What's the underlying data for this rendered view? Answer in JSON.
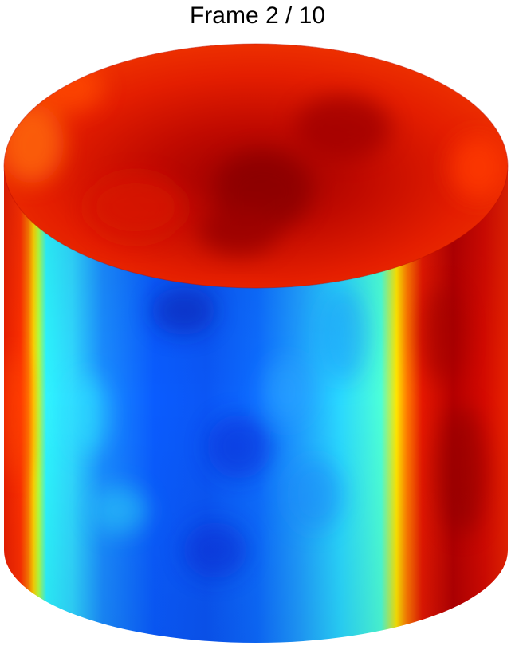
{
  "figure": {
    "title": "Frame 2 / 10",
    "colormap": "jet",
    "colors": {
      "dark_red": "#8a0000",
      "red": "#e11a00",
      "orange": "#ff6a00",
      "yellow": "#ffe100",
      "cyan": "#16f0ff",
      "light_blue": "#1aa6ff",
      "blue": "#0a5cff",
      "dark_blue": "#0a1fb0"
    }
  }
}
